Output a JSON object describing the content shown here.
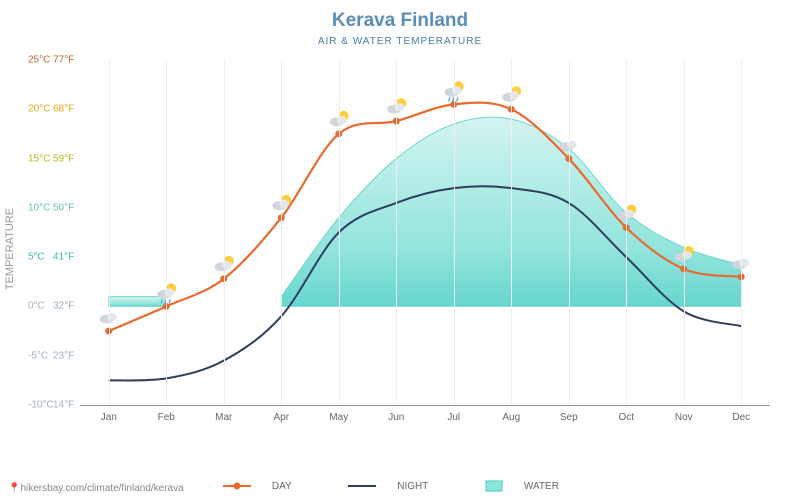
{
  "header": {
    "title": "Kerava Finland",
    "subtitle": "AIR & WATER TEMPERATURE"
  },
  "chart": {
    "type": "line",
    "yaxis_label": "TEMPERATURE",
    "ylim_c": [
      -10,
      25
    ],
    "yticks": [
      {
        "c": "25°C",
        "f": "77°F",
        "v": 25
      },
      {
        "c": "20°C",
        "f": "68°F",
        "v": 20
      },
      {
        "c": "15°C",
        "f": "59°F",
        "v": 15
      },
      {
        "c": "10°C",
        "f": "50°F",
        "v": 10
      },
      {
        "c": "5°C",
        "f": "41°F",
        "v": 5
      },
      {
        "c": "0°C",
        "f": "32°F",
        "v": 0
      },
      {
        "c": "-5°C",
        "f": "23°F",
        "v": -5
      },
      {
        "c": "-10°C",
        "f": "14°F",
        "v": -10
      }
    ],
    "months": [
      "Jan",
      "Feb",
      "Mar",
      "Apr",
      "May",
      "Jun",
      "Jul",
      "Aug",
      "Sep",
      "Oct",
      "Nov",
      "Dec"
    ],
    "series": {
      "day": {
        "label": "DAY",
        "color": "#e96a2e",
        "line_width": 2.2,
        "values": [
          -2.5,
          0,
          2.8,
          9,
          17.5,
          18.8,
          20.5,
          20,
          15,
          8,
          3.8,
          3
        ]
      },
      "night": {
        "label": "NIGHT",
        "color": "#2d3e5e",
        "line_width": 2,
        "values": [
          -7.5,
          -7.3,
          -5.5,
          -1,
          7.5,
          10.5,
          12,
          12,
          10.5,
          5,
          -0.5,
          -2
        ]
      },
      "water": {
        "label": "WATER",
        "fill": "#8ee6de",
        "stroke": "#42c9bd",
        "opacity": 0.75,
        "values": [
          1,
          1,
          null,
          1,
          9,
          15,
          18.5,
          19,
          16,
          9.5,
          6,
          4.2
        ],
        "segments": [
          [
            0,
            1
          ],
          [
            3,
            11
          ]
        ]
      }
    },
    "background_color": "#ffffff",
    "xgrid_color": "#eeeeee"
  },
  "legend": {
    "day": "DAY",
    "night": "NIGHT",
    "water": "WATER"
  },
  "source": {
    "text": "hikersbay.com/climate/finland/kerava"
  },
  "style": {
    "title_color": "#5b8db8",
    "tick_color": "#999999",
    "month_color": "#666666"
  }
}
